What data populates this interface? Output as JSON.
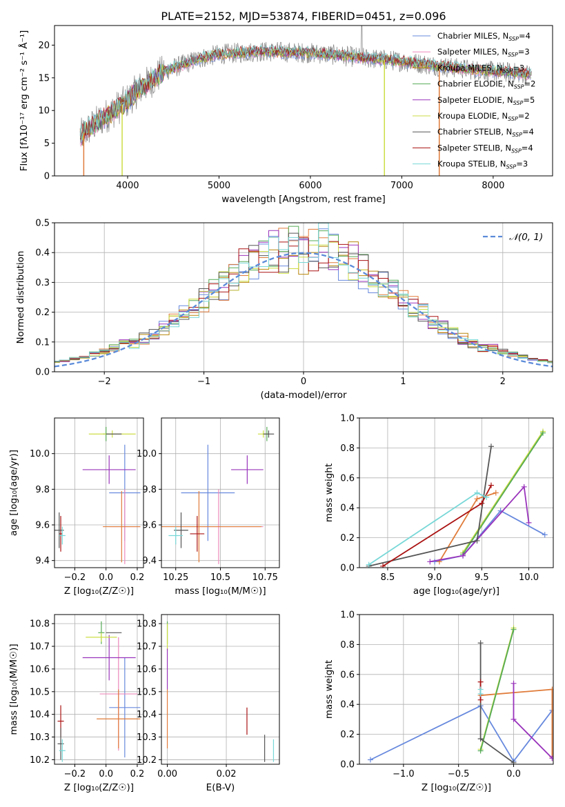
{
  "figure_title": "PLATE=2152, MJD=53874, FIBERID=0451, z=0.096",
  "series_colors": [
    "#6688dd",
    "#e07b39",
    "#b8860b",
    "#55aa55",
    "#9933bb",
    "#ccdd44",
    "#555555",
    "#aa1111",
    "#77d7d7"
  ],
  "chart_data": [
    {
      "type": "line",
      "title": "PLATE=2152, MJD=53874, FIBERID=0451, z=0.096",
      "xlabel": "wavelength [Angstrom, rest frame]",
      "ylabel": "Flux [fλ10⁻¹⁷ erg cm⁻² s⁻¹ Å⁻¹]",
      "xlim": [
        3200,
        8650
      ],
      "ylim": [
        0,
        23
      ],
      "xticks": [
        4000,
        5000,
        6000,
        7000,
        8000
      ],
      "yticks": [
        0,
        5,
        10,
        15,
        20
      ],
      "grid": false,
      "legend_position": "top-right",
      "series": [
        {
          "name": "Chabrier MILES, N_SSP=4",
          "color": "#6688dd"
        },
        {
          "name": "Salpeter MILES, N_SSP=3",
          "color": "#ee88bb"
        },
        {
          "name": "Kroupa MILES, N_SSP=3",
          "color": "#b8860b"
        },
        {
          "name": "Chabrier ELODIE, N_SSP=2",
          "color": "#55aa55"
        },
        {
          "name": "Salpeter ELODIE, N_SSP=5",
          "color": "#9933bb"
        },
        {
          "name": "Kroupa ELODIE, N_SSP=2",
          "color": "#ccdd44"
        },
        {
          "name": "Chabrier STELIB, N_SSP=4",
          "color": "#555555"
        },
        {
          "name": "Salpeter STELIB, N_SSP=4",
          "color": "#aa1111"
        },
        {
          "name": "Kroupa STELIB, N_SSP=3",
          "color": "#77d7d7"
        }
      ],
      "continuum": {
        "x": [
          3480,
          3600,
          3700,
          3800,
          3900,
          4000,
          4100,
          4200,
          4300,
          4400,
          4500,
          4600,
          4700,
          4800,
          4900,
          5000,
          5200,
          5400,
          5600,
          5800,
          6000,
          6200,
          6400,
          6600,
          6800,
          7000,
          7200,
          7400,
          7600,
          7800,
          8000,
          8200,
          8350
        ],
        "y": [
          6.0,
          7.5,
          8.5,
          9.5,
          10.5,
          11.5,
          13.0,
          14.0,
          15.0,
          16.0,
          16.5,
          17.0,
          17.5,
          18.0,
          18.3,
          18.6,
          18.8,
          19.0,
          19.0,
          18.9,
          18.8,
          18.6,
          18.3,
          18.0,
          17.8,
          17.5,
          17.2,
          16.8,
          16.5,
          16.2,
          16.0,
          15.8,
          15.6
        ]
      }
    },
    {
      "type": "line",
      "xlabel": "(data-model)/error",
      "ylabel": "Normed distribution",
      "xlim": [
        -2.5,
        2.5
      ],
      "ylim": [
        0,
        0.5
      ],
      "xticks": [
        -2,
        -1,
        0,
        1,
        2
      ],
      "yticks": [
        0.0,
        0.1,
        0.2,
        0.3,
        0.4,
        0.5
      ],
      "grid": true,
      "legend_position": "top-right",
      "legend": [
        "𝒩(0, 1)"
      ],
      "gaussian": {
        "mean": 0,
        "sigma": 1,
        "color": "#5b8bd9"
      },
      "histogram_bin_width": 0.1,
      "histogram_color_count": 9
    },
    {
      "type": "scatter",
      "xlabel": "Z [log₁₀(Z/Z☉)]",
      "ylabel": "age  [log₁₀(age/yr)]",
      "xlim": [
        -0.33,
        0.24
      ],
      "ylim": [
        9.36,
        10.2
      ],
      "xticks": [
        -0.2,
        0.0,
        0.2
      ],
      "yticks": [
        9.4,
        9.6,
        9.8,
        10.0
      ],
      "grid": true,
      "points": [
        {
          "x": 0.12,
          "y": 9.78,
          "xerr": 0.1,
          "yerr": 0.27,
          "color": "#6688dd"
        },
        {
          "x": 0.12,
          "y": 9.59,
          "xerr": 0.1,
          "yerr": 0.21,
          "color": "#ee88bb"
        },
        {
          "x": 0.1,
          "y": 9.59,
          "xerr": 0.12,
          "yerr": 0.2,
          "color": "#e07b39"
        },
        {
          "x": 0.0,
          "y": 10.11,
          "xerr": 0.02,
          "yerr": 0.04,
          "color": "#55aa55"
        },
        {
          "x": 0.02,
          "y": 9.91,
          "xerr": 0.17,
          "yerr": 0.08,
          "color": "#9933bb"
        },
        {
          "x": 0.04,
          "y": 10.11,
          "xerr": 0.15,
          "yerr": 0.02,
          "color": "#ccdd44"
        },
        {
          "x": 0.05,
          "y": 10.11,
          "xerr": 0.05,
          "yerr": 0.0,
          "color": "#555555"
        },
        {
          "x": -0.29,
          "y": 9.55,
          "xerr": 0.01,
          "yerr": 0.1,
          "color": "#aa1111"
        },
        {
          "x": -0.3,
          "y": 9.57,
          "xerr": 0.03,
          "yerr": 0.1,
          "color": "#555555"
        },
        {
          "x": -0.28,
          "y": 9.54,
          "xerr": 0.02,
          "yerr": 0.05,
          "color": "#77d7d7"
        }
      ]
    },
    {
      "type": "scatter",
      "xlabel": "mass [log₁₀(M/M☉)]",
      "ylabel": "",
      "xlim": [
        10.17,
        10.83
      ],
      "ylim": [
        9.36,
        10.2
      ],
      "xticks": [
        10.25,
        10.5,
        10.75
      ],
      "yticks": [
        9.4,
        9.6,
        9.8,
        10.0
      ],
      "grid": true,
      "points": [
        {
          "x": 10.43,
          "y": 9.78,
          "xerr": 0.15,
          "yerr": 0.27,
          "color": "#6688dd"
        },
        {
          "x": 10.49,
          "y": 9.59,
          "xerr": 0.25,
          "yerr": 0.21,
          "color": "#ee88bb"
        },
        {
          "x": 10.38,
          "y": 9.59,
          "xerr": 0.35,
          "yerr": 0.2,
          "color": "#e07b39"
        },
        {
          "x": 10.76,
          "y": 10.11,
          "xerr": 0.01,
          "yerr": 0.04,
          "color": "#55aa55"
        },
        {
          "x": 10.65,
          "y": 9.91,
          "xerr": 0.09,
          "yerr": 0.08,
          "color": "#9933bb"
        },
        {
          "x": 10.74,
          "y": 10.11,
          "xerr": 0.03,
          "yerr": 0.02,
          "color": "#ccdd44"
        },
        {
          "x": 10.77,
          "y": 10.11,
          "xerr": 0.03,
          "yerr": 0.02,
          "color": "#555555"
        },
        {
          "x": 10.37,
          "y": 9.55,
          "xerr": 0.04,
          "yerr": 0.1,
          "color": "#aa1111"
        },
        {
          "x": 10.28,
          "y": 9.57,
          "xerr": 0.04,
          "yerr": 0.1,
          "color": "#555555"
        },
        {
          "x": 10.25,
          "y": 9.54,
          "xerr": 0.04,
          "yerr": 0.05,
          "color": "#77d7d7"
        }
      ]
    },
    {
      "type": "line",
      "xlabel": "age  [log₁₀(age/yr)]",
      "ylabel": "mass weight",
      "xlim": [
        8.2,
        10.26
      ],
      "ylim": [
        0,
        1
      ],
      "xticks": [
        8.5,
        9.0,
        9.5,
        10.0
      ],
      "yticks": [
        0.0,
        0.2,
        0.4,
        0.6,
        0.8,
        1.0
      ],
      "grid": true,
      "series": [
        {
          "color": "#6688dd",
          "x": [
            9.0,
            9.3,
            9.7,
            10.17
          ],
          "y": [
            0.04,
            0.08,
            0.38,
            0.22
          ]
        },
        {
          "color": "#e07b39",
          "x": [
            9.05,
            9.45,
            9.65
          ],
          "y": [
            0.04,
            0.46,
            0.5
          ]
        },
        {
          "color": "#ccdd44",
          "x": [
            9.3,
            10.15
          ],
          "y": [
            0.1,
            0.91
          ]
        },
        {
          "color": "#55aa55",
          "x": [
            9.3,
            10.15
          ],
          "y": [
            0.09,
            0.9
          ]
        },
        {
          "color": "#9933bb",
          "x": [
            8.95,
            9.3,
            9.95,
            10.0
          ],
          "y": [
            0.04,
            0.08,
            0.54,
            0.3
          ]
        },
        {
          "color": "#555555",
          "x": [
            8.3,
            9.45,
            9.6
          ],
          "y": [
            0.01,
            0.18,
            0.81
          ]
        },
        {
          "color": "#aa1111",
          "x": [
            8.45,
            9.5,
            9.6
          ],
          "y": [
            0.01,
            0.43,
            0.55
          ]
        },
        {
          "color": "#77d7d7",
          "x": [
            8.3,
            9.45,
            9.55
          ],
          "y": [
            0.02,
            0.5,
            0.47
          ]
        }
      ]
    },
    {
      "type": "scatter",
      "xlabel": "Z [log₁₀(Z/Z☉)]",
      "ylabel": "mass [log₁₀(M/M☉)]",
      "xlim": [
        -0.33,
        0.24
      ],
      "ylim": [
        10.18,
        10.84
      ],
      "xticks": [
        -0.2,
        0.0,
        0.2
      ],
      "yticks": [
        10.2,
        10.3,
        10.4,
        10.5,
        10.6,
        10.7,
        10.8
      ],
      "grid": true,
      "points": [
        {
          "x": 0.12,
          "y": 10.43,
          "xerr": 0.1,
          "yerr": 0.22,
          "color": "#6688dd"
        },
        {
          "x": 0.08,
          "y": 10.49,
          "xerr": 0.12,
          "yerr": 0.25,
          "color": "#ee88bb"
        },
        {
          "x": 0.08,
          "y": 10.38,
          "xerr": 0.14,
          "yerr": 0.13,
          "color": "#e07b39"
        },
        {
          "x": -0.03,
          "y": 10.76,
          "xerr": 0.02,
          "yerr": 0.05,
          "color": "#55aa55"
        },
        {
          "x": 0.02,
          "y": 10.65,
          "xerr": 0.17,
          "yerr": 0.1,
          "color": "#9933bb"
        },
        {
          "x": -0.03,
          "y": 10.74,
          "xerr": 0.1,
          "yerr": 0.02,
          "color": "#ccdd44"
        },
        {
          "x": 0.05,
          "y": 10.76,
          "xerr": 0.05,
          "yerr": 0.0,
          "color": "#555555"
        },
        {
          "x": -0.29,
          "y": 10.37,
          "xerr": 0.02,
          "yerr": 0.07,
          "color": "#aa1111"
        },
        {
          "x": -0.29,
          "y": 10.27,
          "xerr": 0.02,
          "yerr": 0.07,
          "color": "#555555"
        },
        {
          "x": -0.28,
          "y": 10.24,
          "xerr": 0.02,
          "yerr": 0.05,
          "color": "#77d7d7"
        }
      ]
    },
    {
      "type": "scatter",
      "xlabel": "E(B-V)",
      "ylabel": "",
      "xlim": [
        -0.002,
        0.038
      ],
      "ylim": [
        10.18,
        10.84
      ],
      "xticks": [
        0.0,
        0.02
      ],
      "yticks": [
        10.2,
        10.3,
        10.4,
        10.5,
        10.6,
        10.7,
        10.8
      ],
      "grid": true,
      "points": [
        {
          "x": 0.0,
          "y": 10.76,
          "xerr": 0.0,
          "yerr": 0.05,
          "color": "#55aa55"
        },
        {
          "x": 0.0,
          "y": 10.74,
          "xerr": 0.0,
          "yerr": 0.06,
          "color": "#ccdd44"
        },
        {
          "x": 0.0,
          "y": 10.6,
          "xerr": 0.0,
          "yerr": 0.09,
          "color": "#9933bb"
        },
        {
          "x": 0.0,
          "y": 10.38,
          "xerr": 0.0,
          "yerr": 0.13,
          "color": "#e07b39"
        },
        {
          "x": 0.027,
          "y": 10.37,
          "xerr": 0.0,
          "yerr": 0.06,
          "color": "#aa1111"
        },
        {
          "x": 0.033,
          "y": 10.25,
          "xerr": 0.0,
          "yerr": 0.06,
          "color": "#555555"
        },
        {
          "x": 0.036,
          "y": 10.24,
          "xerr": 0.0,
          "yerr": 0.05,
          "color": "#77d7d7"
        }
      ]
    },
    {
      "type": "line",
      "xlabel": "Z [log₁₀(Z/Z☉)]",
      "ylabel": "mass weight",
      "xlim": [
        -1.4,
        0.36
      ],
      "ylim": [
        0,
        1
      ],
      "xticks": [
        -1.0,
        -0.5,
        0.0
      ],
      "yticks": [
        0.0,
        0.2,
        0.4,
        0.6,
        0.8,
        1.0
      ],
      "grid": true,
      "series": [
        {
          "color": "#6688dd",
          "x": [
            -1.3,
            -0.3,
            0.0,
            0.35
          ],
          "y": [
            0.03,
            0.39,
            0.02,
            0.36
          ]
        },
        {
          "color": "#e07b39",
          "x": [
            -0.3,
            0.35,
            0.35
          ],
          "y": [
            0.46,
            0.5,
            0.05
          ]
        },
        {
          "color": "#ccdd44",
          "x": [
            -0.3,
            0.0
          ],
          "y": [
            0.1,
            0.91
          ]
        },
        {
          "color": "#55aa55",
          "x": [
            -0.3,
            0.0
          ],
          "y": [
            0.09,
            0.9
          ]
        },
        {
          "color": "#9933bb",
          "x": [
            0.0,
            0.0,
            0.35
          ],
          "y": [
            0.54,
            0.3,
            0.04
          ]
        },
        {
          "color": "#555555",
          "x": [
            -0.3,
            -0.3,
            0.0
          ],
          "y": [
            0.81,
            0.17,
            0.01
          ]
        },
        {
          "color": "#aa1111",
          "x": [
            -0.3,
            -0.3
          ],
          "y": [
            0.55,
            0.43
          ]
        },
        {
          "color": "#77d7d7",
          "x": [
            -0.3,
            -0.3
          ],
          "y": [
            0.5,
            0.47
          ]
        }
      ]
    }
  ]
}
